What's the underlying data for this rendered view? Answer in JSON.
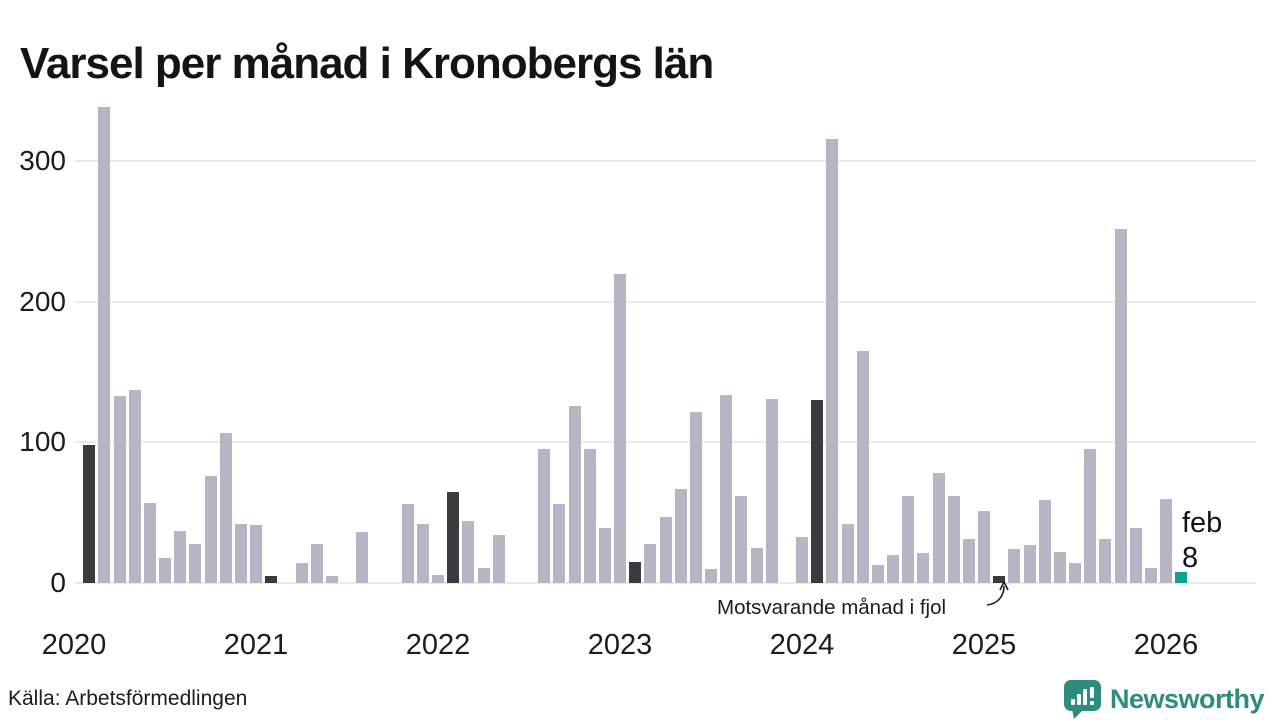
{
  "title": "Varsel per månad i Kronobergs län",
  "source": "Källa: Arbetsförmedlingen",
  "branding": {
    "logo_text": "Newsworthy",
    "logo_color": "#2e8b7d"
  },
  "annotation": {
    "text": "Motsvarande månad i fjol"
  },
  "current_point_label": {
    "month": "feb",
    "value": "8"
  },
  "colors": {
    "bar_default": "#b7b4c3",
    "bar_highlight": "#3b3a3e",
    "bar_current": "#0ca395",
    "gridline": "#eae8ee",
    "text": "#1c1c1c"
  },
  "chart_data": {
    "type": "bar",
    "title": "Varsel per månad i Kronobergs län",
    "xlabel": "",
    "ylabel": "",
    "ylim": [
      0,
      350
    ],
    "yticks": [
      0,
      100,
      200,
      300
    ],
    "grid": true,
    "year_ticks": [
      "2020",
      "2021",
      "2022",
      "2023",
      "2024",
      "2025",
      "2026"
    ],
    "highlight_meaning": "Motsvarande månad i fjol (februari varje år)",
    "current_meaning": "feb 2026 = 8",
    "bars": [
      {
        "m": "2020-01",
        "v": 0
      },
      {
        "m": "2020-02",
        "v": 98,
        "c": "dark"
      },
      {
        "m": "2020-03",
        "v": 339
      },
      {
        "m": "2020-04",
        "v": 133
      },
      {
        "m": "2020-05",
        "v": 137
      },
      {
        "m": "2020-06",
        "v": 57
      },
      {
        "m": "2020-07",
        "v": 18
      },
      {
        "m": "2020-08",
        "v": 37
      },
      {
        "m": "2020-09",
        "v": 28
      },
      {
        "m": "2020-10",
        "v": 76
      },
      {
        "m": "2020-11",
        "v": 107
      },
      {
        "m": "2020-12",
        "v": 42
      },
      {
        "m": "2021-01",
        "v": 41
      },
      {
        "m": "2021-02",
        "v": 5,
        "c": "dark"
      },
      {
        "m": "2021-03",
        "v": 0
      },
      {
        "m": "2021-04",
        "v": 14
      },
      {
        "m": "2021-05",
        "v": 28
      },
      {
        "m": "2021-06",
        "v": 5
      },
      {
        "m": "2021-07",
        "v": 0
      },
      {
        "m": "2021-08",
        "v": 36
      },
      {
        "m": "2021-09",
        "v": 0
      },
      {
        "m": "2021-10",
        "v": 0
      },
      {
        "m": "2021-11",
        "v": 56
      },
      {
        "m": "2021-12",
        "v": 42
      },
      {
        "m": "2022-01",
        "v": 6
      },
      {
        "m": "2022-02",
        "v": 65,
        "c": "dark"
      },
      {
        "m": "2022-03",
        "v": 44
      },
      {
        "m": "2022-04",
        "v": 11
      },
      {
        "m": "2022-05",
        "v": 34
      },
      {
        "m": "2022-06",
        "v": 0
      },
      {
        "m": "2022-07",
        "v": 0
      },
      {
        "m": "2022-08",
        "v": 95
      },
      {
        "m": "2022-09",
        "v": 56
      },
      {
        "m": "2022-10",
        "v": 126
      },
      {
        "m": "2022-11",
        "v": 95
      },
      {
        "m": "2022-12",
        "v": 39
      },
      {
        "m": "2023-01",
        "v": 220
      },
      {
        "m": "2023-02",
        "v": 15,
        "c": "dark"
      },
      {
        "m": "2023-03",
        "v": 28
      },
      {
        "m": "2023-04",
        "v": 47
      },
      {
        "m": "2023-05",
        "v": 67
      },
      {
        "m": "2023-06",
        "v": 122
      },
      {
        "m": "2023-07",
        "v": 10
      },
      {
        "m": "2023-08",
        "v": 134
      },
      {
        "m": "2023-09",
        "v": 62
      },
      {
        "m": "2023-10",
        "v": 25
      },
      {
        "m": "2023-11",
        "v": 131
      },
      {
        "m": "2023-12",
        "v": 0
      },
      {
        "m": "2024-01",
        "v": 33
      },
      {
        "m": "2024-02",
        "v": 130,
        "c": "dark"
      },
      {
        "m": "2024-03",
        "v": 316
      },
      {
        "m": "2024-04",
        "v": 42
      },
      {
        "m": "2024-05",
        "v": 165
      },
      {
        "m": "2024-06",
        "v": 13
      },
      {
        "m": "2024-07",
        "v": 20
      },
      {
        "m": "2024-08",
        "v": 62
      },
      {
        "m": "2024-09",
        "v": 21
      },
      {
        "m": "2024-10",
        "v": 78
      },
      {
        "m": "2024-11",
        "v": 62
      },
      {
        "m": "2024-12",
        "v": 31
      },
      {
        "m": "2025-01",
        "v": 51
      },
      {
        "m": "2025-02",
        "v": 5,
        "c": "dark"
      },
      {
        "m": "2025-03",
        "v": 24
      },
      {
        "m": "2025-04",
        "v": 27
      },
      {
        "m": "2025-05",
        "v": 59
      },
      {
        "m": "2025-06",
        "v": 22
      },
      {
        "m": "2025-07",
        "v": 14
      },
      {
        "m": "2025-08",
        "v": 95
      },
      {
        "m": "2025-09",
        "v": 31
      },
      {
        "m": "2025-10",
        "v": 252
      },
      {
        "m": "2025-11",
        "v": 39
      },
      {
        "m": "2025-12",
        "v": 11
      },
      {
        "m": "2026-01",
        "v": 60
      },
      {
        "m": "2026-02",
        "v": 8,
        "c": "teal"
      }
    ]
  }
}
